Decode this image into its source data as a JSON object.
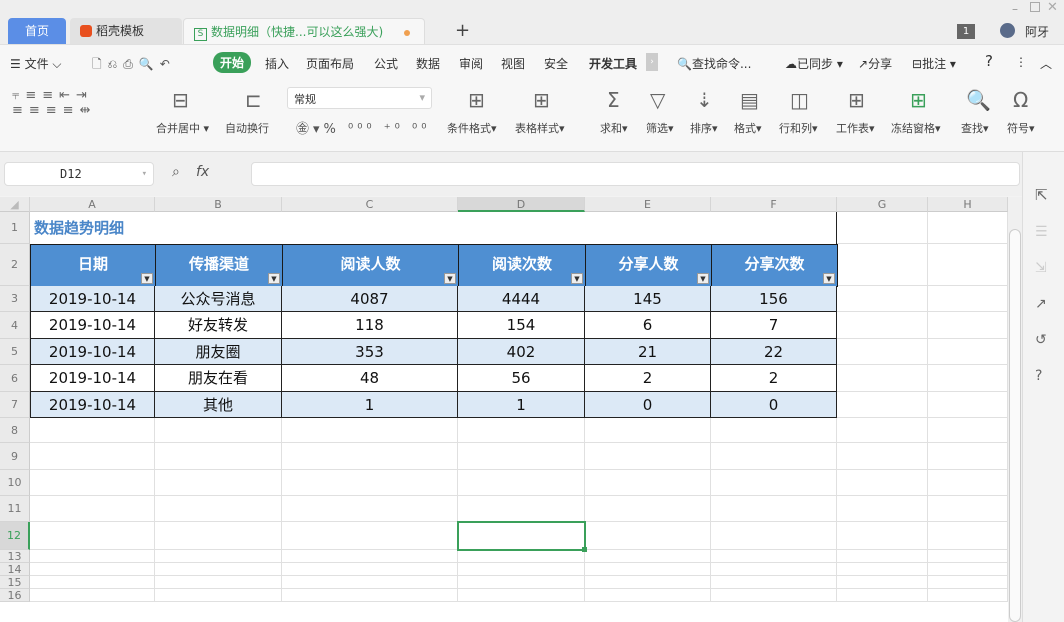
{
  "titlebar": {
    "tabs": [
      {
        "label": "首页"
      },
      {
        "label": "稻壳模板"
      },
      {
        "label": "数据明细（快捷...可以这么强大)"
      }
    ],
    "new_tab": "+",
    "badge": "1",
    "user": "阿牙"
  },
  "menu": {
    "file": "文件",
    "items": [
      "开始",
      "插入",
      "页面布局",
      "公式",
      "数据",
      "审阅",
      "视图",
      "安全",
      "开发工具"
    ],
    "active": "开始",
    "search": "查找命令...",
    "synced": "已同步",
    "share": "分享",
    "comment": "批注"
  },
  "ribbon": {
    "merge": "合并居中",
    "wrap": "自动换行",
    "format_select": "常规",
    "cond_format": "条件格式",
    "table_style": "表格样式",
    "sum": "求和",
    "filter": "筛选",
    "sort": "排序",
    "format": "格式",
    "rowcol": "行和列",
    "sheet": "工作表",
    "freeze": "冻结窗格",
    "find": "查找",
    "symbol": "符号"
  },
  "formula_bar": {
    "cell_ref": "D12",
    "fx": "fx",
    "value": ""
  },
  "sheet": {
    "columns": [
      "A",
      "B",
      "C",
      "D",
      "E",
      "F",
      "G",
      "H"
    ],
    "selected_column": "D",
    "selected_row": "12",
    "selected_cell": "D12",
    "rows": [
      "1",
      "2",
      "3",
      "4",
      "5",
      "6",
      "7",
      "8",
      "9",
      "10",
      "11",
      "12",
      "13",
      "14",
      "15",
      "16"
    ],
    "title": "数据趋势明细",
    "headers": [
      "日期",
      "传播渠道",
      "阅读人数",
      "阅读次数",
      "分享人数",
      "分享次数"
    ],
    "data": [
      [
        "2019-10-14",
        "公众号消息",
        "4087",
        "4444",
        "145",
        "156"
      ],
      [
        "2019-10-14",
        "好友转发",
        "118",
        "154",
        "6",
        "7"
      ],
      [
        "2019-10-14",
        "朋友圈",
        "353",
        "402",
        "21",
        "22"
      ],
      [
        "2019-10-14",
        "朋友在看",
        "48",
        "56",
        "2",
        "2"
      ],
      [
        "2019-10-14",
        "其他",
        "1",
        "1",
        "0",
        "0"
      ]
    ],
    "colors": {
      "header": "#4f8fd2",
      "band": "#dce9f6",
      "title": "#4a86c8",
      "selection": "#3aa05a"
    }
  }
}
